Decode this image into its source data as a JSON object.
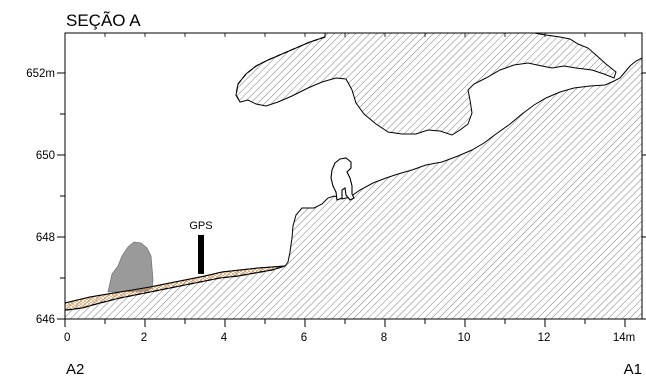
{
  "title": "SEÇÃO A",
  "y_axis": {
    "ticks": [
      {
        "value": 652,
        "label": "652m"
      },
      {
        "value": 650,
        "label": "650"
      },
      {
        "value": 648,
        "label": "648"
      },
      {
        "value": 646,
        "label": "646"
      }
    ],
    "range": [
      646,
      653
    ]
  },
  "x_axis": {
    "ticks": [
      {
        "value": 0,
        "label": "0"
      },
      {
        "value": 2,
        "label": "2"
      },
      {
        "value": 4,
        "label": "4"
      },
      {
        "value": 6,
        "label": "6"
      },
      {
        "value": 8,
        "label": "8"
      },
      {
        "value": 10,
        "label": "10"
      },
      {
        "value": 12,
        "label": "12"
      },
      {
        "value": 14,
        "label": "14m"
      }
    ],
    "range": [
      0,
      14
    ]
  },
  "ends": {
    "left": "A2",
    "right": "A1"
  },
  "gps": {
    "label": "GPS",
    "x": 3.4,
    "y_base": 647.1,
    "y_top": 648.05
  },
  "colors": {
    "hatch": "#5a5a5a",
    "boulder": "#9a9a9a",
    "sediment": "#d9822b",
    "line": "#000000"
  }
}
